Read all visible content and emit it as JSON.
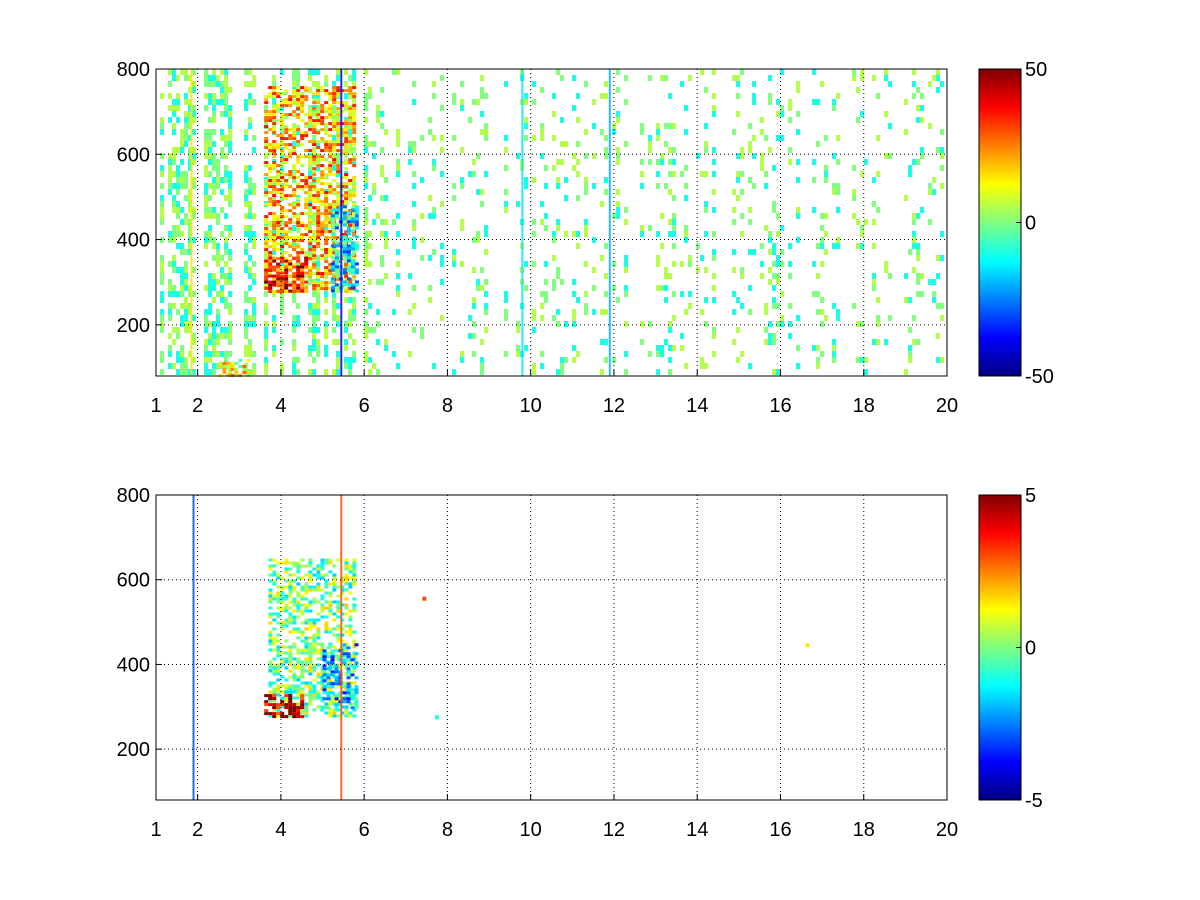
{
  "chart_data": [
    {
      "type": "heatmap",
      "title": "",
      "xlabel": "",
      "ylabel": "",
      "xlim": [
        1,
        20
      ],
      "ylim": [
        80,
        800
      ],
      "x_ticks": [
        "1",
        "2",
        "4",
        "6",
        "8",
        "10",
        "12",
        "14",
        "16",
        "18",
        "20"
      ],
      "y_ticks": [
        "200",
        "400",
        "600",
        "800"
      ],
      "grid": true,
      "colormap": "jet",
      "colorbar": {
        "range": [
          -50,
          50
        ],
        "ticks": [
          "50",
          "0",
          "-50"
        ]
      },
      "blank_value_color": "#ffffff",
      "regions": [
        {
          "x": [
            3.6,
            5.8
          ],
          "y": [
            280,
            760
          ],
          "level": 20,
          "desc": "dense band"
        },
        {
          "x": [
            3.6,
            4.6
          ],
          "y": [
            280,
            360
          ],
          "level": 35,
          "desc": "strong low band"
        },
        {
          "x": [
            5.2,
            5.8
          ],
          "y": [
            280,
            480
          ],
          "level": -15,
          "desc": "cool column"
        },
        {
          "x": [
            2.5,
            3.2
          ],
          "y": [
            80,
            120
          ],
          "level": 12,
          "desc": "floor patch"
        }
      ],
      "vertical_lines": [
        {
          "x": 1.85,
          "level": 15
        },
        {
          "x": 5.45,
          "level": -40
        },
        {
          "x": 9.8,
          "level": -15
        },
        {
          "x": 11.9,
          "level": -20
        }
      ],
      "sparse_columns_x_range": [
        6,
        20
      ],
      "sparse_levels": [
        -10,
        0,
        5
      ]
    },
    {
      "type": "heatmap",
      "title": "",
      "xlabel": "",
      "ylabel": "",
      "xlim": [
        1,
        20
      ],
      "ylim": [
        80,
        800
      ],
      "x_ticks": [
        "1",
        "2",
        "4",
        "6",
        "8",
        "10",
        "12",
        "14",
        "16",
        "18",
        "20"
      ],
      "y_ticks": [
        "200",
        "400",
        "600",
        "800"
      ],
      "grid": true,
      "colormap": "jet",
      "colorbar": {
        "range": [
          -5,
          5
        ],
        "ticks": [
          "5",
          "0",
          "-5"
        ]
      },
      "blank_value_color": "#ffffff",
      "regions": [
        {
          "x": [
            3.7,
            5.8
          ],
          "y": [
            280,
            650
          ],
          "level": 0,
          "desc": "main cluster"
        },
        {
          "x": [
            3.6,
            4.5
          ],
          "y": [
            280,
            330
          ],
          "level": 4.5,
          "desc": "hot low edge"
        },
        {
          "x": [
            5.0,
            5.8
          ],
          "y": [
            300,
            450
          ],
          "level": -2,
          "desc": "cool right part"
        }
      ],
      "vertical_lines": [
        {
          "x": 1.9,
          "level": -3
        },
        {
          "x": 5.45,
          "level": 3
        }
      ],
      "isolated_points": [
        {
          "x": 16.6,
          "y": 450,
          "level": 1.5
        },
        {
          "x": 7.7,
          "y": 280,
          "level": -1
        },
        {
          "x": 7.4,
          "y": 560,
          "level": 3
        }
      ]
    }
  ]
}
